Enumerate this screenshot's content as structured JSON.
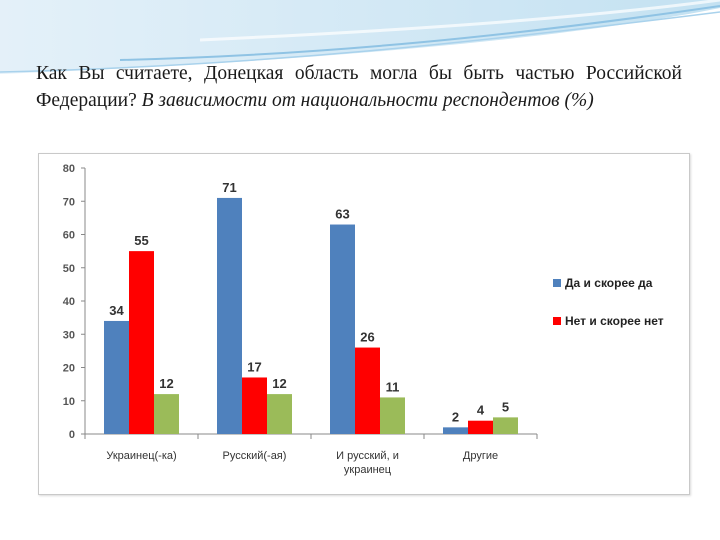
{
  "slide": {
    "title_regular": "Как Вы считаете, Донецкая область могла бы быть частью Российской Федерации?",
    "title_italic": "В зависимости от национальности респондентов (%)"
  },
  "chart_data": {
    "type": "bar",
    "categories": [
      [
        "Украинец(-ка)"
      ],
      [
        "Русский(-ая)"
      ],
      [
        "И русский, и",
        "украинец"
      ],
      [
        "Другие"
      ]
    ],
    "series": [
      {
        "name": "Да и скорее да",
        "color": "#4f81bd",
        "values": [
          34,
          71,
          63,
          2
        ]
      },
      {
        "name": "Нет и скорее нет",
        "color": "#ff0000",
        "values": [
          55,
          17,
          26,
          4
        ]
      },
      {
        "name": "",
        "color": "#9bbb59",
        "values": [
          12,
          12,
          11,
          5
        ]
      }
    ],
    "ylim": [
      0,
      80
    ],
    "yticks": [
      0,
      10,
      20,
      30,
      40,
      50,
      60,
      70,
      80
    ],
    "grid": false,
    "legend": "right"
  }
}
